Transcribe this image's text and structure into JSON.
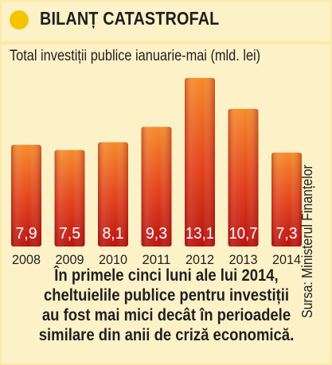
{
  "header": {
    "title": "BILANȚ CATASTROFAL"
  },
  "chart_data": {
    "type": "bar",
    "title": "Total investiții publice ianuarie-mai (mld. lei)",
    "source": "Sursa: Ministerul Finanțelor",
    "categories": [
      "2008",
      "2009",
      "2010",
      "2011",
      "2012",
      "2013",
      "2014"
    ],
    "values": [
      7.9,
      7.5,
      8.1,
      9.3,
      13.1,
      10.7,
      7.3
    ],
    "value_labels": [
      "7,9",
      "7,5",
      "8,1",
      "9,3",
      "13,1",
      "10,7",
      "7,3"
    ],
    "ylim": [
      0,
      13.1
    ],
    "grid": false,
    "colors": {
      "bar_top": "#f68a2a",
      "bar_mid": "#e2401b",
      "bar_bottom": "#b8120f",
      "value_text": "#ffffff"
    }
  },
  "footer": {
    "lines": [
      "În primele cinci luni ale lui 2014,",
      "cheltuielile publice pentru investiții",
      "au fost mai mici decât în perioadele",
      "similare din anii de criză economică."
    ]
  }
}
